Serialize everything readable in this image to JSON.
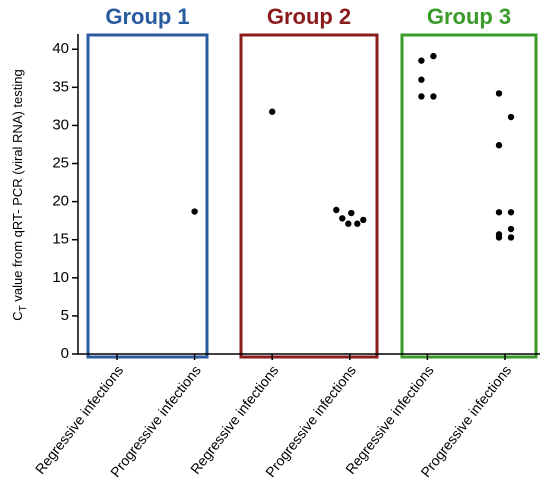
{
  "chart_data": {
    "type": "scatter",
    "categories": [
      "Regressive infections",
      "Progressive infections",
      "Regressive infections",
      "Progressive infections",
      "Regressive infections",
      "Progressive infections"
    ],
    "ylabel": [
      "C",
      "T",
      " value from qRT- PCR (viral RNA) testing"
    ],
    "ylim": [
      0,
      42
    ],
    "yticks": [
      0,
      5,
      10,
      15,
      20,
      25,
      30,
      35,
      40
    ],
    "color": "#000000",
    "groups": [
      {
        "name": "Group 1",
        "color": "#2a5aa0"
      },
      {
        "name": "Group 2",
        "color": "#8b1c1c"
      },
      {
        "name": "Group 3",
        "color": "#3a9a2a"
      }
    ],
    "values": [
      [],
      [
        18.7
      ],
      [
        31.8
      ],
      [
        18.9,
        18.5,
        17.8,
        17.1,
        17.1,
        17.6
      ],
      [
        38.5,
        39.1,
        36.0,
        33.8,
        33.8
      ],
      [
        34.2,
        31.1,
        27.4,
        18.6,
        18.6,
        16.4,
        15.7,
        15.3,
        15.3
      ]
    ]
  }
}
